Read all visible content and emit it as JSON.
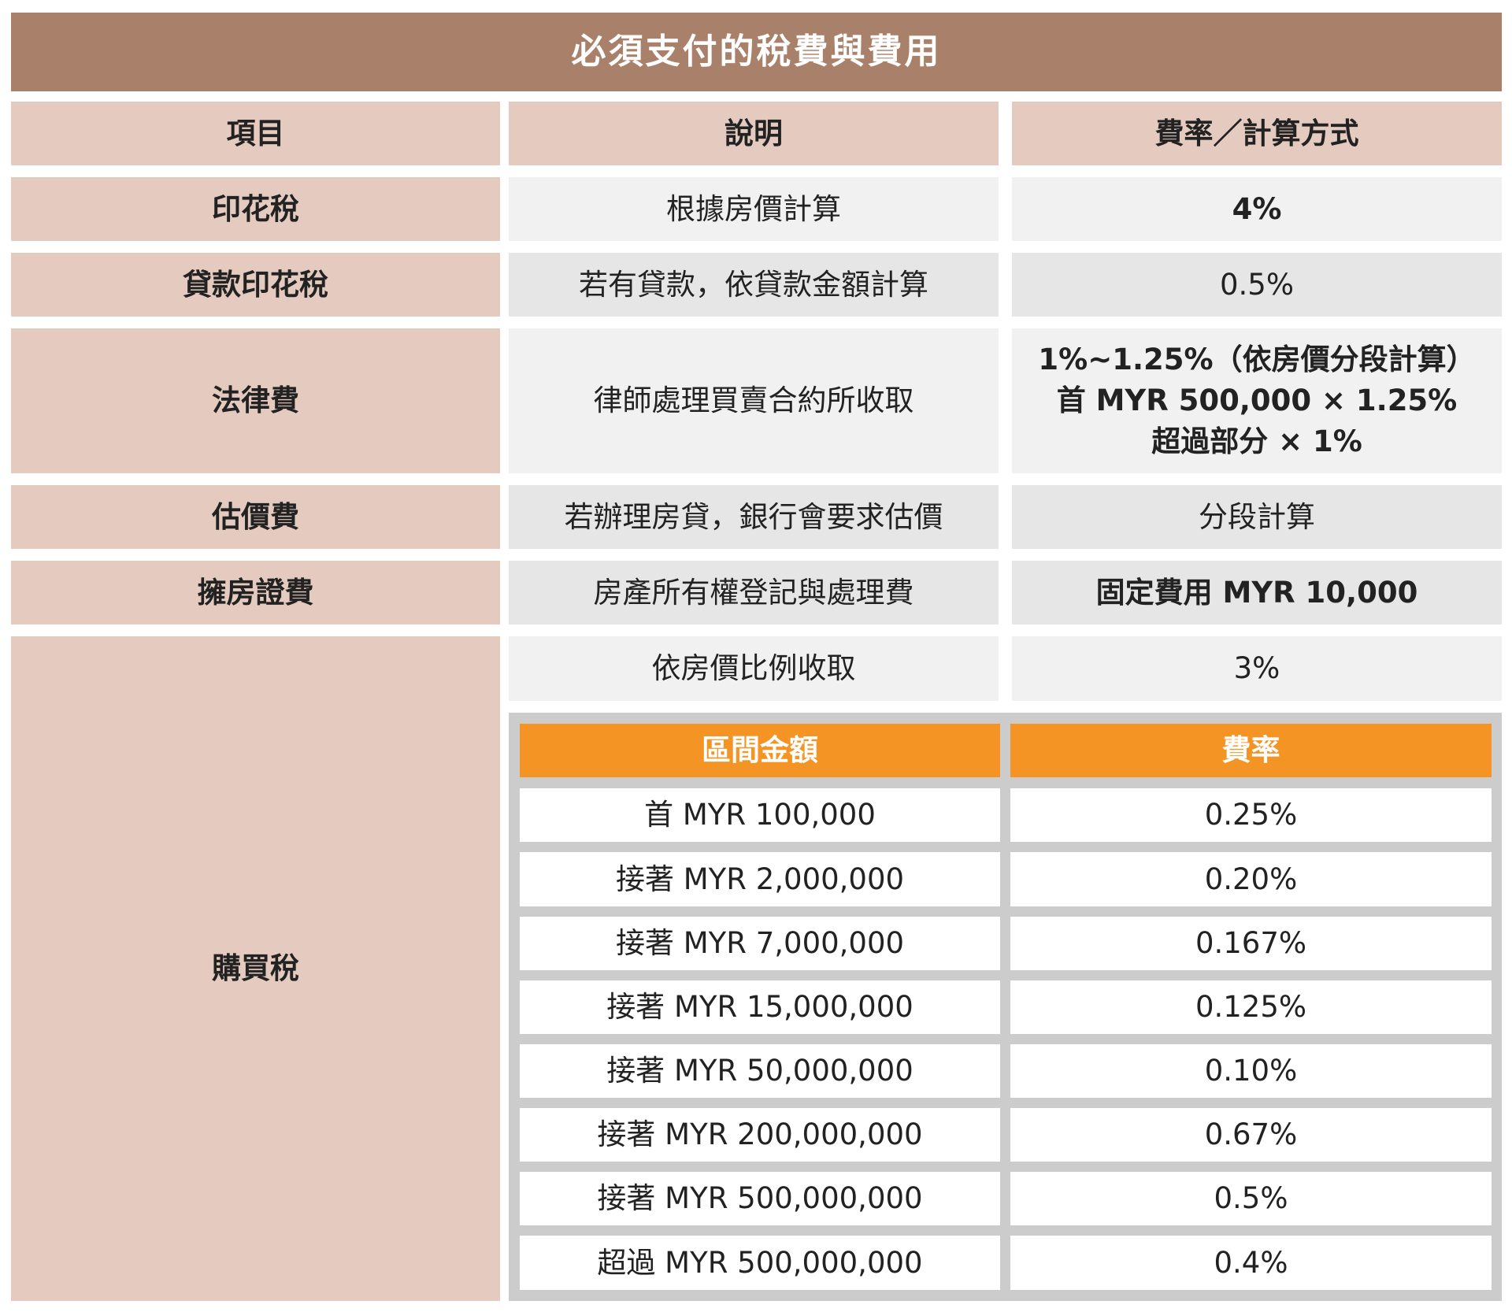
{
  "title": "必須支付的稅費與費用",
  "headers": {
    "item": "項目",
    "desc": "說明",
    "rate": "費率／計算方式"
  },
  "rows": [
    {
      "item": "印花稅",
      "desc": "根據房價計算",
      "rate": "4%"
    },
    {
      "item": "貸款印花稅",
      "desc": "若有貸款，依貸款金額計算",
      "rate": "0.5%"
    },
    {
      "item": "法律費",
      "desc": "律師處理買賣合約所收取",
      "rate_lines": [
        "1%~1.25%（依房價分段計算）",
        "首 MYR 500,000 × 1.25%",
        "超過部分 × 1%"
      ]
    },
    {
      "item": "估價費",
      "desc": "若辦理房貸，銀行會要求估價",
      "rate": "分段計算"
    },
    {
      "item": "擁房證費",
      "desc": "房產所有權登記與處理費",
      "rate": "固定費用 MYR 10,000"
    },
    {
      "item": "購買稅",
      "desc": "依房價比例收取",
      "rate": "3%"
    }
  ],
  "sub_table": {
    "headers": {
      "bracket": "區間金額",
      "rate": "費率"
    },
    "rows": [
      {
        "bracket": "首 MYR 100,000",
        "rate": "0.25%"
      },
      {
        "bracket": "接著 MYR 2,000,000",
        "rate": "0.20%"
      },
      {
        "bracket": "接著 MYR 7,000,000",
        "rate": "0.167%"
      },
      {
        "bracket": "接著 MYR 15,000,000",
        "rate": "0.125%"
      },
      {
        "bracket": "接著 MYR 50,000,000",
        "rate": "0.10%"
      },
      {
        "bracket": "接著 MYR 200,000,000",
        "rate": "0.67%"
      },
      {
        "bracket": "接著 MYR 500,000,000",
        "rate": "0.5%"
      },
      {
        "bracket": "超過 MYR 500,000,000",
        "rate": "0.4%"
      }
    ]
  },
  "colors": {
    "title_bg": "#a98069",
    "label_bg": "#e5cbbf",
    "row_light": "#f1f1f1",
    "row_dark": "#e6e6e6",
    "sub_header_bg": "#f39424",
    "sub_frame": "#cccccc"
  }
}
